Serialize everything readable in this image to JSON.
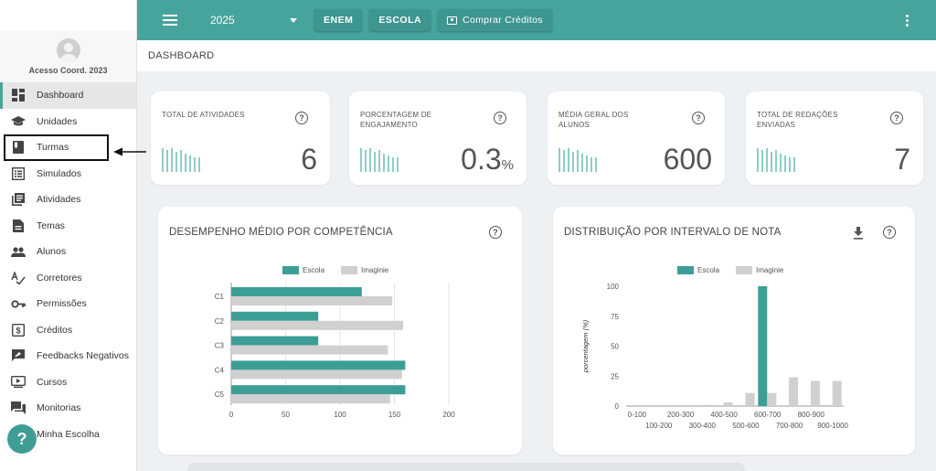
{
  "header": {
    "year": "2025",
    "buttons": {
      "enem": "ENEM",
      "escola": "ESCOLA",
      "credits": "Comprar Créditos"
    }
  },
  "profile": {
    "name": "Acesso Coord. 2023"
  },
  "sidebar": {
    "items": [
      {
        "label": "Dashboard",
        "icon": "dashboard-icon"
      },
      {
        "label": "Unidades",
        "icon": "school-icon"
      },
      {
        "label": "Turmas",
        "icon": "book-icon"
      },
      {
        "label": "Simulados",
        "icon": "list-icon"
      },
      {
        "label": "Atividades",
        "icon": "library-icon"
      },
      {
        "label": "Temas",
        "icon": "document-icon"
      },
      {
        "label": "Alunos",
        "icon": "people-icon"
      },
      {
        "label": "Corretores",
        "icon": "spellcheck-icon"
      },
      {
        "label": "Permissões",
        "icon": "key-icon"
      },
      {
        "label": "Créditos",
        "icon": "dollar-icon"
      },
      {
        "label": "Feedbacks Negativos",
        "icon": "feedback-icon"
      },
      {
        "label": "Cursos",
        "icon": "video-icon"
      },
      {
        "label": "Monitorias",
        "icon": "forum-icon"
      },
      {
        "label": "Minha Escolha",
        "icon": "check-icon"
      }
    ]
  },
  "breadcrumb": "DASHBOARD",
  "stats": [
    {
      "title": "TOTAL DE ATIVIDADES",
      "value": "6",
      "unit": ""
    },
    {
      "title": "PORCENTAGEM DE ENGAJAMENTO",
      "value": "0.3",
      "unit": "%"
    },
    {
      "title": "MÉDIA GERAL DOS ALUNOS",
      "value": "600",
      "unit": ""
    },
    {
      "title": "TOTAL DE REDAÇÕES ENVIADAS",
      "value": "7",
      "unit": ""
    }
  ],
  "colors": {
    "accent": "#47a49c",
    "series_escola": "#3d9e96",
    "series_imaginie": "#d0d0d0"
  },
  "chart_data": [
    {
      "type": "bar",
      "orientation": "horizontal",
      "title": "DESEMPENHO MÉDIO POR COMPETÊNCIA",
      "categories": [
        "C1",
        "C2",
        "C3",
        "C4",
        "C5"
      ],
      "series": [
        {
          "name": "Escola",
          "values": [
            120,
            80,
            80,
            160,
            160
          ]
        },
        {
          "name": "Imaginie",
          "values": [
            148,
            158,
            144,
            157,
            146
          ]
        }
      ],
      "xlim": [
        0,
        200
      ],
      "xticks": [
        "0",
        "50",
        "100",
        "150",
        "200"
      ],
      "legend": "top-center",
      "grid": true
    },
    {
      "type": "bar",
      "title": "DISTRIBUIÇÃO POR INTERVALO DE NOTA",
      "ylabel": "porcentagem (%)",
      "categories": [
        "0-100",
        "100-200",
        "200-300",
        "300-400",
        "400-500",
        "500-600",
        "600-700",
        "700-800",
        "800-900",
        "900-1000"
      ],
      "series": [
        {
          "name": "Escola",
          "values": [
            0,
            0,
            0,
            0,
            0,
            0,
            100,
            0,
            0,
            0
          ]
        },
        {
          "name": "Imaginie",
          "values": [
            0,
            0,
            0,
            1,
            3,
            11,
            11,
            24,
            21,
            21
          ]
        }
      ],
      "ylim": [
        0,
        100
      ],
      "yticks": [
        "0",
        "25",
        "50",
        "75",
        "100"
      ],
      "legend": "top-center",
      "grid": false
    }
  ]
}
